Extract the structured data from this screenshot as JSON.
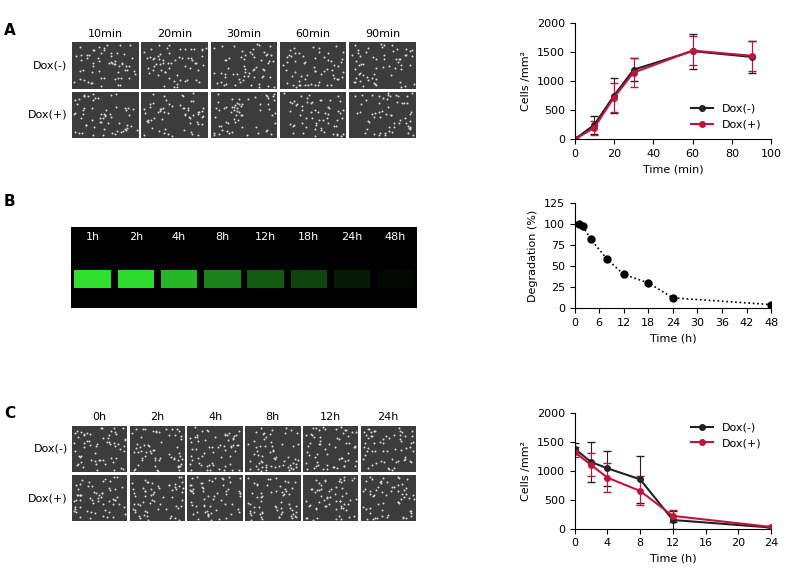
{
  "chart_data": [
    {
      "type": "image",
      "panel": "A",
      "columns": [
        "10min",
        "20min",
        "30min",
        "60min",
        "90min"
      ],
      "rows": [
        "Dox(-)",
        "Dox(+)"
      ]
    },
    {
      "type": "line",
      "xlabel": "Time (min)",
      "ylabel": "Cells /mm²",
      "xlim": [
        0,
        100
      ],
      "xticks": [
        0,
        20,
        40,
        60,
        80,
        100
      ],
      "ylim": [
        0,
        2000
      ],
      "yticks": [
        0,
        500,
        1000,
        1500,
        2000
      ],
      "legend": "lower right",
      "series": [
        {
          "name": "Dox(-)",
          "color": "#222222",
          "marker": "o",
          "line_style": "solid",
          "x": [
            0,
            10,
            20,
            30,
            60,
            90
          ],
          "values": [
            0,
            250,
            750,
            1200,
            1520,
            1420
          ],
          "errors": [
            0,
            150,
            300,
            200,
            300,
            280
          ]
        },
        {
          "name": "Dox(+)",
          "color": "#c0143c",
          "marker": "o",
          "line_style": "solid",
          "x": [
            0,
            10,
            20,
            30,
            60,
            90
          ],
          "values": [
            0,
            200,
            720,
            1150,
            1530,
            1440
          ],
          "errors": [
            0,
            120,
            250,
            250,
            250,
            260
          ]
        }
      ]
    },
    {
      "type": "gel",
      "panel": "B",
      "lanes": [
        "1h",
        "2h",
        "4h",
        "8h",
        "12h",
        "18h",
        "24h",
        "48h"
      ]
    },
    {
      "type": "line",
      "xlabel": "Time (h)",
      "ylabel": "Degradation (%)",
      "xlim": [
        0,
        48
      ],
      "xticks": [
        0,
        6,
        12,
        18,
        24,
        30,
        36,
        42,
        48
      ],
      "ylim": [
        0,
        125
      ],
      "yticks": [
        0,
        25,
        50,
        75,
        100,
        125
      ],
      "series": [
        {
          "color": "#000000",
          "marker": "o",
          "line_style": "dotted",
          "x": [
            1,
            2,
            4,
            8,
            12,
            18,
            24,
            48
          ],
          "values": [
            100,
            98,
            82,
            58,
            40,
            30,
            12,
            4
          ]
        }
      ]
    },
    {
      "type": "image",
      "panel": "C",
      "columns": [
        "0h",
        "2h",
        "4h",
        "8h",
        "12h",
        "24h"
      ],
      "rows": [
        "Dox(-)",
        "Dox(+)"
      ]
    },
    {
      "type": "line",
      "xlabel": "Time (h)",
      "ylabel": "Cells /mm²",
      "xlim": [
        0,
        24
      ],
      "xticks": [
        0,
        4,
        8,
        12,
        16,
        20,
        24
      ],
      "ylim": [
        0,
        2000
      ],
      "yticks": [
        0,
        500,
        1000,
        1500,
        2000
      ],
      "legend": "upper right",
      "series": [
        {
          "name": "Dox(-)",
          "color": "#222222",
          "marker": "o",
          "line_style": "solid",
          "x": [
            0,
            2,
            4,
            8,
            12,
            24
          ],
          "values": [
            1380,
            1150,
            1040,
            850,
            150,
            20
          ],
          "errors": [
            100,
            350,
            300,
            400,
            150,
            20
          ]
        },
        {
          "name": "Dox(+)",
          "color": "#c0143c",
          "marker": "o",
          "line_style": "solid",
          "x": [
            0,
            2,
            4,
            8,
            12,
            24
          ],
          "values": [
            1320,
            1100,
            880,
            650,
            220,
            30
          ],
          "errors": [
            80,
            200,
            250,
            250,
            100,
            20
          ]
        }
      ]
    }
  ]
}
